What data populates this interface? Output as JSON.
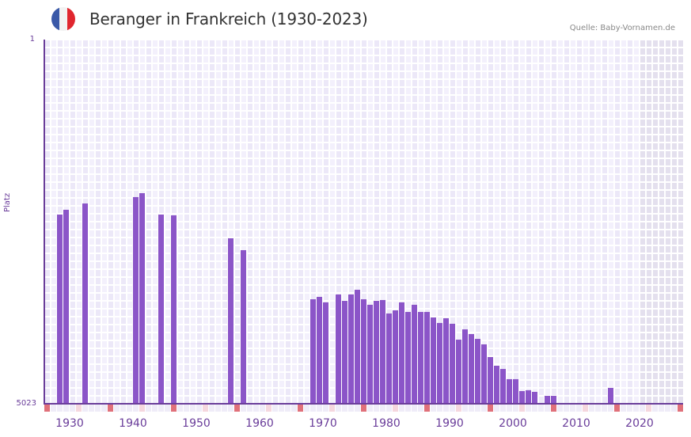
{
  "header": {
    "title": "Beranger in Frankreich (1930-2023)",
    "source": "Quelle: Baby-Vornamen.de",
    "flag_colors": [
      "#3a59a8",
      "#f2f2f2",
      "#e0262e"
    ]
  },
  "colors": {
    "bar": "#8b55c8",
    "axis": "#6a3d9a",
    "grid_cell_a": "#f3f0fc",
    "grid_cell_b": "#ece8f8",
    "future_shade": "#e4e0ee",
    "marker_strong": "#e0707a",
    "marker_light": "#f5d7de",
    "marker_bg": "#efecf8"
  },
  "chart_data": {
    "type": "bar",
    "title": "Beranger in Frankreich (1930-2023)",
    "xlabel": "",
    "ylabel": "Platz",
    "y_axis_inverted": true,
    "ylim": [
      1,
      5023
    ],
    "yticks": [
      "1",
      "5023"
    ],
    "xlim": [
      1928,
      2028
    ],
    "xticks": [
      "1930",
      "1940",
      "1950",
      "1960",
      "1970",
      "1980",
      "1990",
      "2000",
      "2010",
      "2020"
    ],
    "future_shaded_from": 2022,
    "grid": true,
    "legend": null,
    "x": [
      1930,
      1931,
      1934,
      1942,
      1943,
      1946,
      1948,
      1957,
      1959,
      1970,
      1971,
      1972,
      1974,
      1975,
      1976,
      1977,
      1978,
      1979,
      1980,
      1981,
      1982,
      1983,
      1984,
      1985,
      1986,
      1987,
      1988,
      1989,
      1990,
      1991,
      1992,
      1993,
      1994,
      1995,
      1996,
      1997,
      1998,
      1999,
      2000,
      2001,
      2002,
      2003,
      2004,
      2005,
      2007,
      2008,
      2017
    ],
    "values": [
      2414,
      2348,
      2261,
      2173,
      2119,
      2414,
      2425,
      2741,
      2905,
      3582,
      3549,
      3625,
      3516,
      3604,
      3516,
      3451,
      3582,
      3658,
      3604,
      3593,
      3778,
      3735,
      3625,
      3757,
      3658,
      3757,
      3757,
      3833,
      3909,
      3844,
      3920,
      4139,
      3997,
      4062,
      4128,
      4204,
      4379,
      4499,
      4543,
      4684,
      4684,
      4848,
      4837,
      4859,
      4914,
      4914,
      4804
    ]
  }
}
